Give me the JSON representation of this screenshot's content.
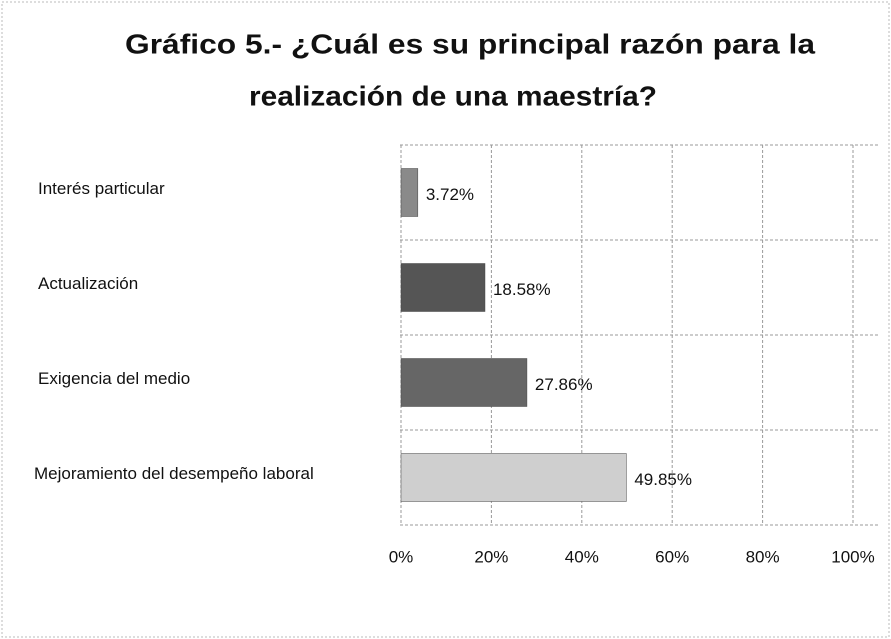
{
  "chart_data": {
    "type": "bar",
    "orientation": "horizontal",
    "title": [
      "Gráfico 5.- ¿Cuál es su principal razón para la",
      "realización de una maestría?"
    ],
    "categories": [
      "Interés particular",
      "Actualización",
      "Exigencia del medio",
      "Mejoramiento del desempeño laboral"
    ],
    "values": [
      3.72,
      18.58,
      27.86,
      49.85
    ],
    "value_labels": [
      "3.72%",
      "18.58%",
      "27.86%",
      "49.85%"
    ],
    "colors": [
      "#8a8a8a",
      "#555555",
      "#666666",
      "#cfcfcf"
    ],
    "xlim": [
      0,
      100
    ],
    "xticks": [
      {
        "value": 0,
        "label": "0%"
      },
      {
        "value": 20,
        "label": "20%"
      },
      {
        "value": 40,
        "label": "40%"
      },
      {
        "value": 60,
        "label": "60%"
      },
      {
        "value": 80,
        "label": "80%"
      },
      {
        "value": 100,
        "label": "100%"
      }
    ],
    "grid": true
  }
}
